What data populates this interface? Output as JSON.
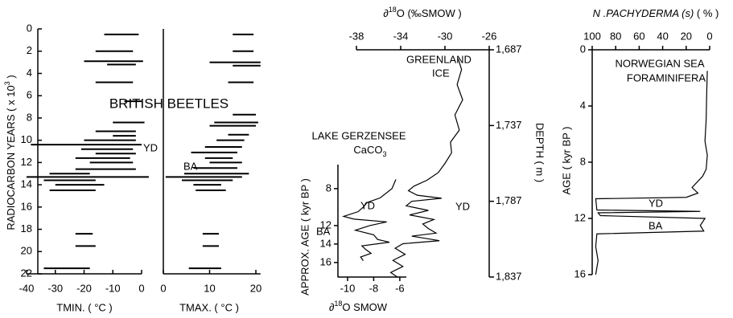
{
  "chart_data": [
    {
      "type": "range",
      "title": "BRITISH BEETLES",
      "xlabel": "TMIN. ( °C )",
      "ylabel": [
        "RADIOCARBON YEARS",
        "( x 10",
        "3",
        " )"
      ],
      "annotations": [
        "YD"
      ],
      "color": "#000000",
      "xlim": [
        -40,
        0
      ],
      "ylim": [
        0,
        22
      ],
      "xticks": [
        -40,
        -30,
        -20,
        -10,
        0
      ],
      "yticks": [
        0,
        2,
        4,
        6,
        8,
        10,
        12,
        14,
        16,
        18,
        20,
        22
      ],
      "y": [
        0.5,
        2.0,
        2.9,
        3.2,
        4.8,
        6.5,
        8.4,
        9.2,
        9.6,
        10.0,
        10.4,
        10.8,
        11.2,
        11.6,
        12.0,
        12.6,
        13.0,
        13.3,
        13.6,
        14.0,
        14.5,
        18.4,
        19.5,
        21.5
      ],
      "lo": [
        -13,
        -16,
        -20,
        -12,
        -16,
        -6,
        -10,
        -16,
        -10,
        -20,
        -38.5,
        -21,
        -16,
        -23,
        -18,
        -23,
        -32,
        -40,
        -34,
        -30,
        -32,
        -23,
        -23,
        -34
      ],
      "hi": [
        -1,
        -3,
        0.5,
        -2,
        -3,
        0,
        1,
        -2,
        -2,
        -2,
        0,
        -3,
        -2,
        -4,
        -3,
        -2,
        -18,
        2.5,
        -16,
        -13,
        -16,
        -17,
        -16,
        -18
      ]
    },
    {
      "type": "range",
      "xlabel": "TMAX. ( °C )",
      "annotations": [
        "BA"
      ],
      "color": "#000000",
      "xlim": [
        0,
        21
      ],
      "ylim": [
        0,
        22
      ],
      "xticks": [
        0,
        10,
        20
      ],
      "y": [
        0.5,
        2.0,
        3.0,
        3.3,
        4.8,
        7.7,
        8.4,
        8.7,
        9.5,
        10.0,
        10.6,
        11.1,
        11.6,
        12.0,
        12.5,
        13.0,
        13.3,
        13.6,
        14.0,
        14.5,
        18.4,
        19.5,
        21.5
      ],
      "lo": [
        15,
        15,
        10,
        15,
        14,
        15,
        11,
        10,
        14,
        11.5,
        9,
        6,
        9,
        10,
        6.5,
        4.5,
        0.5,
        4,
        6.5,
        7,
        8.5,
        8.5,
        5.5
      ],
      "hi": [
        19.5,
        19.5,
        21,
        21,
        19.5,
        20,
        20.5,
        20,
        18.5,
        17.5,
        17,
        16,
        15,
        17,
        16,
        18.5,
        17,
        15,
        12.5,
        13.5,
        12,
        12,
        12.5
      ]
    },
    {
      "type": "line",
      "xlabel": [
        "∂",
        "18",
        "O  (‰SMOW )"
      ],
      "ylabel": "DEPTH  ( m )",
      "annotations": [
        "GREENLAND",
        "ICE",
        "YD"
      ],
      "color": "#000000",
      "xlim": [
        -38,
        -26
      ],
      "ylim": [
        1687,
        1837
      ],
      "xticks": [
        -38,
        -34,
        -30,
        -26
      ],
      "yticks": [
        {
          "value": 1687,
          "label": "1,687"
        },
        {
          "value": 1737,
          "label": "1,737"
        },
        {
          "value": 1787,
          "label": "1,787"
        },
        {
          "value": 1837,
          "label": "1,837"
        }
      ],
      "y": [
        1693,
        1700,
        1710,
        1720,
        1730,
        1740,
        1748,
        1755,
        1762,
        1768,
        1773,
        1777,
        1780,
        1783,
        1785,
        1787,
        1790,
        1793,
        1796,
        1799,
        1802,
        1805,
        1808,
        1810,
        1813,
        1815,
        1818,
        1822,
        1826,
        1830,
        1834,
        1837
      ],
      "x": [
        -28.8,
        -28.5,
        -28.9,
        -28.4,
        -29.1,
        -28.7,
        -29.5,
        -29.4,
        -30.0,
        -30.6,
        -31.6,
        -32.8,
        -33.3,
        -32.5,
        -30.3,
        -33.0,
        -33.5,
        -31.5,
        -33.2,
        -31.0,
        -32.0,
        -31.5,
        -30.8,
        -33.0,
        -30.5,
        -33.8,
        -34.5,
        -33.6,
        -34.7,
        -33.8,
        -34.9,
        -34.3
      ]
    },
    {
      "type": "line",
      "title": [
        "LAKE GERZENSEE",
        "CaCO",
        "3"
      ],
      "xlabel": [
        "∂",
        "18",
        "O SMOW"
      ],
      "ylabel": "APPROX. AGE  ( kyr BP )",
      "annotations": [
        "YD",
        "BA"
      ],
      "color": "#000000",
      "xlim": [
        -10.75,
        -5.5
      ],
      "ylim": [
        5.4,
        17.6
      ],
      "xticks": [
        -10,
        -8,
        -6
      ],
      "yticks": [
        8,
        12,
        14,
        16
      ],
      "y": [
        7.0,
        8.0,
        9.0,
        9.5,
        10.0,
        10.5,
        11.0,
        11.3,
        11.6,
        12.0,
        12.5,
        13.0,
        13.5,
        13.8,
        14.2,
        14.6,
        15.0,
        15.4,
        15.8
      ],
      "x": [
        -6.3,
        -6.6,
        -7.5,
        -8.5,
        -8.8,
        -9.2,
        -10.3,
        -9.5,
        -7.0,
        -8.3,
        -9.4,
        -8.0,
        -7.7,
        -6.8,
        -8.9,
        -8.6,
        -8.2,
        -9.0,
        -8.8
      ]
    },
    {
      "type": "line",
      "title": [
        "N .PACHYDERMA (s)",
        "( % )"
      ],
      "ylabel": "AGE  ( kyr BP )",
      "annotations": [
        "NORWEGIAN SEA",
        "FORAMINIFERA",
        "YD",
        "BA"
      ],
      "color": "#000000",
      "xlim": [
        100,
        0
      ],
      "ylim": [
        0,
        16
      ],
      "xticks": [
        100,
        80,
        60,
        40,
        20,
        0
      ],
      "yticks": [
        0,
        4,
        8,
        12,
        16
      ],
      "y": [
        1.5,
        3,
        5,
        6.5,
        7.5,
        8.5,
        9,
        9.8,
        10.2,
        10.5,
        10.6,
        11.4,
        11.5,
        11.6,
        11.8,
        12.0,
        12.5,
        12.9,
        13.1,
        14,
        15,
        16
      ],
      "x": [
        2,
        2.5,
        3,
        4,
        2,
        3,
        6,
        15,
        10,
        20,
        97,
        96,
        8,
        95,
        93,
        4,
        8,
        5,
        96,
        97,
        95,
        97
      ]
    }
  ]
}
